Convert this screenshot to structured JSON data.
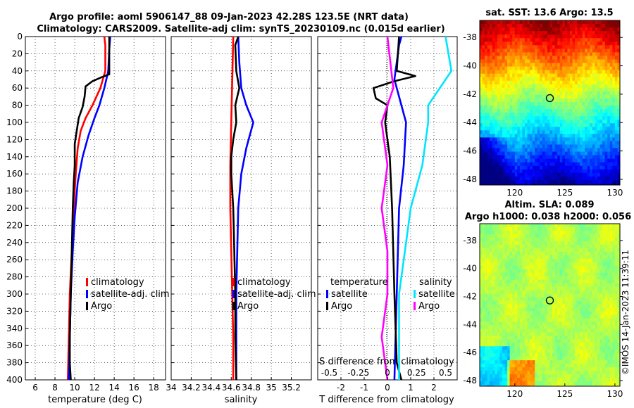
{
  "titles": {
    "line1": "Argo profile: aoml 5906147_88 09-Jan-2023 42.28S 123.5E (NRT data)",
    "line2": "Climatology: CARS2009. Satellite-adj clim: synTS_20230109.nc (0.015d earlier)"
  },
  "credit": "©IMOS 14-Jan-2023 11:39:11",
  "chart_data": [
    {
      "type": "line",
      "panel": "temperature",
      "xlabel": "temperature (deg C)",
      "ylabel": "",
      "xlim": [
        5,
        19.2
      ],
      "ylim": [
        400,
        0
      ],
      "xticks": [
        "6",
        "8",
        "10",
        "12",
        "14",
        "16",
        "18"
      ],
      "yticks": [
        "0",
        "20",
        "40",
        "60",
        "80",
        "100",
        "120",
        "140",
        "160",
        "180",
        "200",
        "220",
        "240",
        "260",
        "280",
        "300",
        "320",
        "340",
        "360",
        "380",
        "400"
      ],
      "legend": [
        "climatology",
        "satellite-adj. clim",
        "Argo"
      ],
      "series": [
        {
          "name": "climatology",
          "color": "#ff0000",
          "points": [
            [
              13.0,
              0
            ],
            [
              13.1,
              10
            ],
            [
              13.1,
              40
            ],
            [
              12.6,
              60
            ],
            [
              11.8,
              80
            ],
            [
              11.1,
              95
            ],
            [
              10.6,
              110
            ],
            [
              10.3,
              130
            ],
            [
              10.1,
              160
            ],
            [
              9.9,
              200
            ],
            [
              9.7,
              250
            ],
            [
              9.5,
              300
            ],
            [
              9.4,
              350
            ],
            [
              9.3,
              400
            ]
          ]
        },
        {
          "name": "satellite-adj. clim",
          "color": "#0000ff",
          "points": [
            [
              13.6,
              0
            ],
            [
              13.5,
              15
            ],
            [
              13.4,
              40
            ],
            [
              13.0,
              60
            ],
            [
              12.5,
              80
            ],
            [
              12.0,
              95
            ],
            [
              11.4,
              115
            ],
            [
              10.8,
              140
            ],
            [
              10.3,
              170
            ],
            [
              10.0,
              210
            ],
            [
              9.8,
              250
            ],
            [
              9.6,
              300
            ],
            [
              9.5,
              350
            ],
            [
              9.4,
              400
            ]
          ]
        },
        {
          "name": "Argo",
          "color": "#000000",
          "points": [
            [
              13.5,
              0
            ],
            [
              13.5,
              10
            ],
            [
              13.5,
              44
            ],
            [
              12.8,
              47
            ],
            [
              11.8,
              52
            ],
            [
              11.1,
              58
            ],
            [
              11.0,
              70
            ],
            [
              10.8,
              82
            ],
            [
              10.4,
              95
            ],
            [
              10.2,
              110
            ],
            [
              10.0,
              125
            ],
            [
              10.0,
              150
            ],
            [
              9.9,
              170
            ],
            [
              9.8,
              200
            ],
            [
              9.7,
              250
            ],
            [
              9.6,
              300
            ],
            [
              9.5,
              350
            ],
            [
              9.5,
              380
            ],
            [
              9.6,
              400
            ]
          ]
        }
      ]
    },
    {
      "type": "line",
      "panel": "salinity",
      "xlabel": "salinity",
      "ylabel": "",
      "xlim": [
        34,
        35.4
      ],
      "ylim": [
        400,
        0
      ],
      "xticks": [
        "34",
        "34.2",
        "34.4",
        "34.6",
        "34.8",
        "35",
        "35.2"
      ],
      "legend": [
        "climatology",
        "satellite-adj. clim",
        "Argo"
      ],
      "series": [
        {
          "name": "climatology",
          "color": "#ff0000",
          "points": [
            [
              34.62,
              0
            ],
            [
              34.61,
              50
            ],
            [
              34.6,
              100
            ],
            [
              34.59,
              150
            ],
            [
              34.59,
              200
            ],
            [
              34.6,
              250
            ],
            [
              34.61,
              300
            ],
            [
              34.62,
              350
            ],
            [
              34.62,
              400
            ]
          ]
        },
        {
          "name": "satellite-adj. clim",
          "color": "#0000ff",
          "points": [
            [
              34.67,
              0
            ],
            [
              34.68,
              30
            ],
            [
              34.7,
              60
            ],
            [
              34.75,
              80
            ],
            [
              34.82,
              100
            ],
            [
              34.75,
              130
            ],
            [
              34.7,
              160
            ],
            [
              34.67,
              200
            ],
            [
              34.66,
              250
            ],
            [
              34.65,
              300
            ],
            [
              34.65,
              350
            ],
            [
              34.65,
              400
            ]
          ]
        },
        {
          "name": "Argo",
          "color": "#000000",
          "points": [
            [
              34.67,
              0
            ],
            [
              34.64,
              10
            ],
            [
              34.65,
              40
            ],
            [
              34.68,
              60
            ],
            [
              34.64,
              80
            ],
            [
              34.65,
              100
            ],
            [
              34.62,
              120
            ],
            [
              34.6,
              140
            ],
            [
              34.6,
              160
            ],
            [
              34.61,
              180
            ],
            [
              34.62,
              200
            ],
            [
              34.63,
              250
            ],
            [
              34.64,
              300
            ],
            [
              34.64,
              350
            ],
            [
              34.65,
              400
            ]
          ]
        }
      ]
    },
    {
      "type": "line",
      "panel": "difference",
      "xlabel": "T difference from climatology",
      "xlabel_top": "S difference from climatology",
      "xlim": [
        -3,
        3
      ],
      "ylim": [
        400,
        0
      ],
      "xticks": [
        "-2",
        "-1",
        "0",
        "1",
        "2"
      ],
      "xticks_top": [
        "-0.5",
        "-0.25",
        "0",
        "0.25",
        "0.5"
      ],
      "legend_headers": [
        "temperature",
        "salinity"
      ],
      "legend": [
        "satellite",
        "Argo",
        "satellite",
        "Argo"
      ],
      "series": [
        {
          "name": "T satellite",
          "color": "#0000ff",
          "points": [
            [
              0.6,
              0
            ],
            [
              0.5,
              10
            ],
            [
              0.4,
              30
            ],
            [
              0.3,
              50
            ],
            [
              0.6,
              80
            ],
            [
              0.8,
              100
            ],
            [
              0.7,
              150
            ],
            [
              0.5,
              200
            ],
            [
              0.4,
              300
            ],
            [
              0.3,
              400
            ]
          ]
        },
        {
          "name": "T Argo",
          "color": "#000000",
          "points": [
            [
              0.5,
              0
            ],
            [
              0.4,
              40
            ],
            [
              1.2,
              46
            ],
            [
              0.3,
              52
            ],
            [
              -0.6,
              60
            ],
            [
              -0.5,
              72
            ],
            [
              0.0,
              80
            ],
            [
              -0.1,
              100
            ],
            [
              0.1,
              140
            ],
            [
              0.2,
              200
            ],
            [
              0.3,
              300
            ],
            [
              0.4,
              380
            ],
            [
              0.6,
              400
            ]
          ]
        },
        {
          "name": "S satellite",
          "color": "#00e5ff",
          "points": [
            [
              0.5,
              0
            ],
            [
              0.55,
              40
            ],
            [
              0.35,
              80
            ],
            [
              0.35,
              100
            ],
            [
              0.3,
              150
            ],
            [
              0.2,
              200
            ],
            [
              0.15,
              250
            ],
            [
              0.1,
              300
            ],
            [
              0.1,
              350
            ],
            [
              0.1,
              400
            ]
          ]
        },
        {
          "name": "S Argo",
          "color": "#ff00ff",
          "points": [
            [
              0.0,
              0
            ],
            [
              0.05,
              60
            ],
            [
              -0.05,
              100
            ],
            [
              0.0,
              150
            ],
            [
              -0.05,
              200
            ],
            [
              0.0,
              250
            ],
            [
              0.0,
              300
            ],
            [
              -0.05,
              350
            ],
            [
              0.0,
              400
            ]
          ]
        }
      ]
    },
    {
      "type": "heatmap",
      "panel": "sst-map",
      "title": "sat. SST: 13.6 Argo: 13.5",
      "xlim": [
        116.5,
        130.5
      ],
      "ylim": [
        -48.4,
        -36.8
      ],
      "xticks": [
        "120",
        "125",
        "130"
      ],
      "yticks": [
        "-38",
        "-40",
        "-42",
        "-44",
        "-46",
        "-48"
      ],
      "marker": {
        "lon": 123.5,
        "lat": -42.28
      }
    },
    {
      "type": "heatmap",
      "panel": "sla-map",
      "title": "Altim. SLA: 0.089",
      "subtitle": "Argo h1000: 0.038 h2000: 0.056",
      "xlim": [
        116.5,
        130.5
      ],
      "ylim": [
        -48.4,
        -36.8
      ],
      "xticks": [
        "120",
        "125",
        "130"
      ],
      "yticks": [
        "-38",
        "-40",
        "-42",
        "-44",
        "-46",
        "-48"
      ],
      "marker": {
        "lon": 123.5,
        "lat": -42.28
      }
    }
  ]
}
